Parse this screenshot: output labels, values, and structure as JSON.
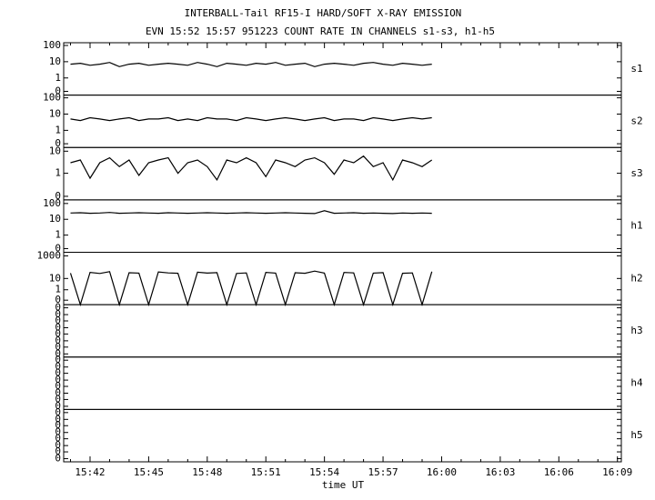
{
  "chart_data": {
    "type": "line",
    "title": "INTERBALL-Tail RF15-I HARD/SOFT X-RAY EMISSION",
    "subtitle": "EVN 15:52 15:57 951223  COUNT RATE IN CHANNELS s1-s3, h1-h5",
    "x_label": "time UT",
    "color": "#000000",
    "xlim": [
      "15:40:39",
      "16:09:12"
    ],
    "xticks": [
      {
        "value": "15:41",
        "label": null
      },
      "15:42",
      {
        "value": "15:43",
        "label": null
      },
      {
        "value": "15:44",
        "label": null
      },
      "15:45",
      {
        "value": "15:46",
        "label": null
      },
      {
        "value": "15:47",
        "label": null
      },
      "15:48",
      {
        "value": "15:49",
        "label": null
      },
      {
        "value": "15:50",
        "label": null
      },
      "15:51",
      {
        "value": "15:52",
        "label": null
      },
      {
        "value": "15:53",
        "label": null
      },
      "15:54",
      {
        "value": "15:55",
        "label": null
      },
      {
        "value": "15:56",
        "label": null
      },
      "15:57",
      {
        "value": "15:58",
        "label": null
      },
      {
        "value": "15:59",
        "label": null
      },
      "16:00",
      {
        "value": "16:01",
        "label": null
      },
      {
        "value": "16:02",
        "label": null
      },
      "16:03",
      {
        "value": "16:04",
        "label": null
      },
      {
        "value": "16:05",
        "label": null
      },
      "16:06",
      {
        "value": "16:07",
        "label": null
      },
      {
        "value": "16:08",
        "label": null
      },
      "16:09"
    ],
    "x": [
      "15:41:00",
      "15:41:30",
      "15:42:00",
      "15:42:30",
      "15:43:00",
      "15:43:30",
      "15:44:00",
      "15:44:30",
      "15:45:00",
      "15:45:30",
      "15:46:00",
      "15:46:30",
      "15:47:00",
      "15:47:30",
      "15:48:00",
      "15:48:30",
      "15:49:00",
      "15:49:30",
      "15:50:00",
      "15:50:30",
      "15:51:00",
      "15:51:30",
      "15:52:00",
      "15:52:30",
      "15:53:00",
      "15:53:30",
      "15:54:00",
      "15:54:30",
      "15:55:00",
      "15:55:30",
      "15:56:00",
      "15:56:30",
      "15:57:00",
      "15:57:30",
      "15:58:00",
      "15:58:30",
      "15:59:00",
      "15:59:30"
    ],
    "panels": [
      {
        "label": "s1",
        "yscale": "log",
        "ylim": [
          0.088,
          147
        ],
        "yticks": [
          100,
          10,
          1,
          {
            "value": 0.15,
            "label": "0"
          }
        ],
        "values": [
          7,
          8,
          6,
          7,
          9,
          5,
          7,
          8,
          6,
          7,
          8,
          7,
          6,
          9,
          7,
          5,
          8,
          7,
          6,
          8,
          7,
          9,
          6,
          7,
          8,
          5,
          7,
          8,
          7,
          6,
          8,
          9,
          7,
          6,
          8,
          7,
          6,
          7
        ]
      },
      {
        "label": "s2",
        "yscale": "log",
        "ylim": [
          0.088,
          147
        ],
        "yticks": [
          100,
          10,
          1,
          {
            "value": 0.15,
            "label": "0"
          }
        ],
        "values": [
          5,
          4,
          6,
          5,
          4,
          5,
          6,
          4,
          5,
          5,
          6,
          4,
          5,
          4,
          6,
          5,
          5,
          4,
          6,
          5,
          4,
          5,
          6,
          5,
          4,
          5,
          6,
          4,
          5,
          5,
          4,
          6,
          5,
          4,
          5,
          6,
          5,
          6
        ]
      },
      {
        "label": "s3",
        "yscale": "log",
        "ylim": [
          0.062,
          14.7
        ],
        "yticks": [
          10,
          1,
          {
            "value": 0.09,
            "label": "0"
          }
        ],
        "values": [
          3,
          4,
          0.6,
          3,
          5,
          2,
          4,
          0.8,
          3,
          4,
          5,
          1,
          3,
          4,
          2,
          0.5,
          4,
          3,
          5,
          3,
          0.7,
          4,
          3,
          2,
          4,
          5,
          3,
          0.9,
          4,
          3,
          6,
          2,
          3,
          0.5,
          4,
          3,
          2,
          4
        ]
      },
      {
        "label": "h1",
        "yscale": "log",
        "ylim": [
          0.082,
          169
        ],
        "yticks": [
          100,
          10,
          1,
          {
            "value": 0.14,
            "label": "0"
          }
        ],
        "values": [
          25,
          26,
          24,
          25,
          27,
          24,
          25,
          26,
          25,
          24,
          26,
          25,
          24,
          25,
          26,
          25,
          24,
          25,
          26,
          25,
          24,
          25,
          26,
          25,
          24,
          23,
          35,
          24,
          25,
          26,
          24,
          25,
          24,
          23,
          25,
          24,
          25,
          24
        ]
      },
      {
        "label": "h2",
        "yscale": "log",
        "ylim": [
          0.048,
          2089
        ],
        "yticks": [
          1000,
          10,
          1,
          {
            "value": 0.12,
            "label": "0"
          }
        ],
        "values": [
          30,
          0,
          35,
          28,
          40,
          0,
          32,
          30,
          0,
          38,
          31,
          29,
          0,
          36,
          30,
          33,
          0,
          28,
          31,
          0,
          35,
          30,
          0,
          32,
          29,
          45,
          30,
          0,
          34,
          31,
          0,
          30,
          33,
          0,
          29,
          31,
          0,
          40
        ]
      },
      {
        "label": "h3",
        "yscale": "linear",
        "ylim": [
          0,
          1
        ],
        "yticks": [
          {
            "value": 0.06,
            "label": "0"
          },
          {
            "value": 0.19,
            "label": "0"
          },
          {
            "value": 0.31,
            "label": "0"
          },
          {
            "value": 0.44,
            "label": "0"
          },
          {
            "value": 0.56,
            "label": "0"
          },
          {
            "value": 0.69,
            "label": "0"
          },
          {
            "value": 0.81,
            "label": "0"
          },
          {
            "value": 0.94,
            "label": "0"
          }
        ]
      },
      {
        "label": "h4",
        "yscale": "linear",
        "ylim": [
          0,
          1
        ],
        "yticks": [
          {
            "value": 0.06,
            "label": "0"
          },
          {
            "value": 0.19,
            "label": "0"
          },
          {
            "value": 0.31,
            "label": "0"
          },
          {
            "value": 0.44,
            "label": "0"
          },
          {
            "value": 0.56,
            "label": "0"
          },
          {
            "value": 0.69,
            "label": "0"
          },
          {
            "value": 0.81,
            "label": "0"
          },
          {
            "value": 0.94,
            "label": "0"
          }
        ]
      },
      {
        "label": "h5",
        "yscale": "linear",
        "ylim": [
          0,
          1
        ],
        "yticks": [
          {
            "value": 0.06,
            "label": "0"
          },
          {
            "value": 0.19,
            "label": "0"
          },
          {
            "value": 0.31,
            "label": "0"
          },
          {
            "value": 0.44,
            "label": "0"
          },
          {
            "value": 0.56,
            "label": "0"
          },
          {
            "value": 0.69,
            "label": "0"
          },
          {
            "value": 0.81,
            "label": "0"
          },
          {
            "value": 0.94,
            "label": "0"
          }
        ]
      }
    ]
  }
}
